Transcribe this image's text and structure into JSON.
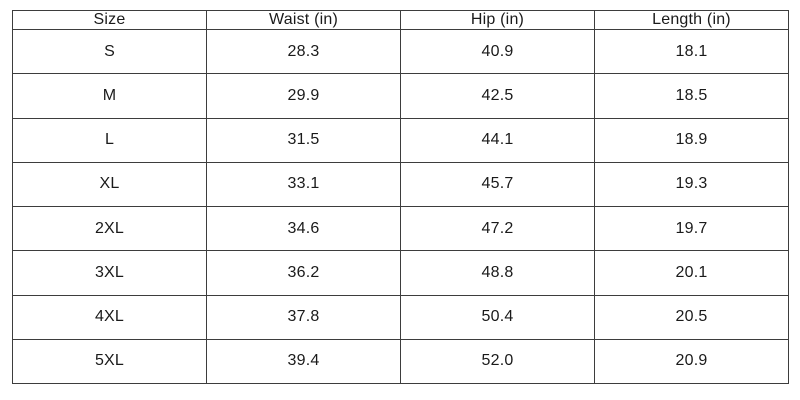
{
  "table": {
    "name": "size-chart",
    "headers": [
      "Size",
      "Waist (in)",
      "Hip (in)",
      "Length (in)"
    ],
    "rows": [
      [
        "S",
        "28.3",
        "40.9",
        "18.1"
      ],
      [
        "M",
        "29.9",
        "42.5",
        "18.5"
      ],
      [
        "L",
        "31.5",
        "44.1",
        "18.9"
      ],
      [
        "XL",
        "33.1",
        "45.7",
        "19.3"
      ],
      [
        "2XL",
        "34.6",
        "47.2",
        "19.7"
      ],
      [
        "3XL",
        "36.2",
        "48.8",
        "20.1"
      ],
      [
        "4XL",
        "37.8",
        "50.4",
        "20.5"
      ],
      [
        "5XL",
        "39.4",
        "52.0",
        "20.9"
      ]
    ],
    "style": {
      "border_color": "#3d3d3d",
      "text_color": "#1a1a1a",
      "background": "#ffffff"
    }
  }
}
